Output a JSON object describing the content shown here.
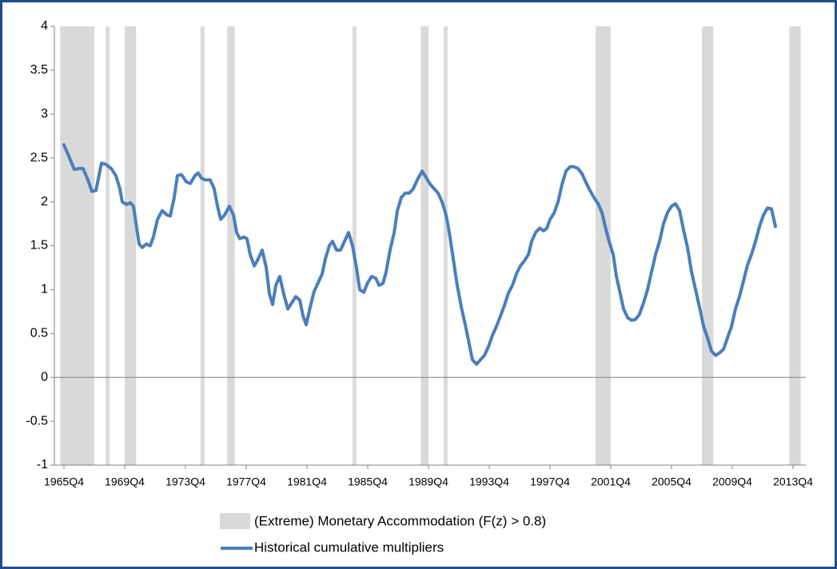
{
  "chart_data": {
    "type": "line",
    "x": [
      1965.75,
      1966.12,
      1966.43,
      1966.8,
      1967.01,
      1967.33,
      1967.59,
      1967.86,
      1968.22,
      1968.49,
      1968.86,
      1969.17,
      1969.43,
      1969.59,
      1969.86,
      1970.12,
      1970.33,
      1970.54,
      1970.7,
      1970.91,
      1971.17,
      1971.43,
      1971.64,
      1971.91,
      1972.22,
      1972.54,
      1972.75,
      1973.01,
      1973.22,
      1973.49,
      1973.8,
      1974.07,
      1974.38,
      1974.59,
      1974.8,
      1975.07,
      1975.38,
      1975.64,
      1975.86,
      1976.07,
      1976.33,
      1976.64,
      1976.91,
      1977.12,
      1977.33,
      1977.59,
      1977.8,
      1978.01,
      1978.28,
      1978.54,
      1978.8,
      1979.07,
      1979.28,
      1979.49,
      1979.7,
      1979.96,
      1980.22,
      1980.49,
      1980.75,
      1981.01,
      1981.28,
      1981.49,
      1981.7,
      1981.96,
      1982.22,
      1982.49,
      1982.75,
      1982.96,
      1983.22,
      1983.43,
      1983.7,
      1983.96,
      1984.22,
      1984.49,
      1984.75,
      1985.01,
      1985.22,
      1985.49,
      1985.75,
      1986.01,
      1986.28,
      1986.49,
      1986.75,
      1986.96,
      1987.22,
      1987.49,
      1987.7,
      1987.96,
      1988.22,
      1988.49,
      1988.75,
      1989.01,
      1989.33,
      1989.59,
      1989.86,
      1990.12,
      1990.38,
      1990.64,
      1990.91,
      1991.12,
      1991.38,
      1991.64,
      1991.91,
      1992.17,
      1992.43,
      1992.64,
      1992.91,
      1993.17,
      1993.43,
      1993.7,
      1993.96,
      1994.22,
      1994.49,
      1994.75,
      1995.01,
      1995.28,
      1995.54,
      1995.8,
      1996.07,
      1996.33,
      1996.54,
      1996.8,
      1997.07,
      1997.33,
      1997.54,
      1997.75,
      1998.01,
      1998.28,
      1998.54,
      1998.8,
      1999.07,
      1999.33,
      1999.59,
      1999.86,
      2000.12,
      2000.38,
      2000.64,
      2000.91,
      2001.17,
      2001.38,
      2001.64,
      2001.91,
      2002.12,
      2002.38,
      2002.59,
      2002.86,
      2003.12,
      2003.38,
      2003.64,
      2003.91,
      2004.17,
      2004.43,
      2004.7,
      2004.96,
      2005.22,
      2005.49,
      2005.75,
      2006.01,
      2006.28,
      2006.54,
      2006.8,
      2007.07,
      2007.33,
      2007.59,
      2007.86,
      2008.12,
      2008.38,
      2008.65,
      2008.91,
      2009.17,
      2009.43,
      2009.7,
      2009.96,
      2010.22,
      2010.49,
      2010.75,
      2011.01,
      2011.28,
      2011.54,
      2011.8,
      2012.07,
      2012.33,
      2012.59
    ],
    "series": [
      {
        "name": "Historical cumulative multipliers",
        "color": "#4a7ebb",
        "values": [
          2.65,
          2.5,
          2.37,
          2.38,
          2.38,
          2.25,
          2.12,
          2.13,
          2.44,
          2.43,
          2.38,
          2.3,
          2.15,
          2.0,
          1.97,
          1.99,
          1.95,
          1.7,
          1.52,
          1.48,
          1.52,
          1.5,
          1.6,
          1.8,
          1.9,
          1.85,
          1.84,
          2.05,
          2.3,
          2.31,
          2.23,
          2.21,
          2.3,
          2.33,
          2.27,
          2.25,
          2.25,
          2.15,
          1.95,
          1.8,
          1.85,
          1.95,
          1.85,
          1.65,
          1.58,
          1.6,
          1.58,
          1.4,
          1.27,
          1.35,
          1.45,
          1.25,
          0.95,
          0.83,
          1.05,
          1.15,
          0.95,
          0.78,
          0.85,
          0.92,
          0.88,
          0.7,
          0.6,
          0.8,
          0.98,
          1.08,
          1.18,
          1.35,
          1.5,
          1.55,
          1.45,
          1.45,
          1.55,
          1.65,
          1.5,
          1.25,
          1.0,
          0.97,
          1.08,
          1.15,
          1.13,
          1.05,
          1.07,
          1.2,
          1.45,
          1.65,
          1.9,
          2.05,
          2.1,
          2.1,
          2.15,
          2.25,
          2.35,
          2.28,
          2.2,
          2.15,
          2.1,
          2.0,
          1.85,
          1.65,
          1.35,
          1.05,
          0.8,
          0.6,
          0.38,
          0.2,
          0.15,
          0.2,
          0.25,
          0.35,
          0.48,
          0.58,
          0.7,
          0.82,
          0.96,
          1.05,
          1.18,
          1.27,
          1.33,
          1.4,
          1.55,
          1.65,
          1.7,
          1.67,
          1.7,
          1.8,
          1.87,
          2.0,
          2.2,
          2.35,
          2.4,
          2.4,
          2.38,
          2.32,
          2.22,
          2.13,
          2.05,
          1.98,
          1.88,
          1.72,
          1.55,
          1.4,
          1.15,
          0.95,
          0.78,
          0.68,
          0.65,
          0.66,
          0.72,
          0.85,
          1.0,
          1.2,
          1.4,
          1.55,
          1.75,
          1.88,
          1.95,
          1.98,
          1.9,
          1.68,
          1.48,
          1.2,
          1.0,
          0.8,
          0.58,
          0.45,
          0.3,
          0.25,
          0.28,
          0.32,
          0.45,
          0.58,
          0.78,
          0.92,
          1.1,
          1.28,
          1.4,
          1.55,
          1.72,
          1.85,
          1.93,
          1.92,
          1.72
        ]
      }
    ],
    "bands": {
      "name": "(Extreme) Monetary Accommodation (F(z) > 0.8)",
      "color": "#d9d9d9",
      "periods": [
        [
          1965.5,
          1967.75
        ],
        [
          1968.5,
          1968.75
        ],
        [
          1969.75,
          1970.5
        ],
        [
          1974.75,
          1975
        ],
        [
          1976.5,
          1977
        ],
        [
          1984.75,
          1985
        ],
        [
          1989.25,
          1989.75
        ],
        [
          1990.75,
          1991
        ],
        [
          2000.75,
          2001.75
        ],
        [
          2007.75,
          2008.5
        ],
        [
          2013.5,
          2014.25
        ]
      ]
    },
    "xlim": [
      1965.12,
      2014.59
    ],
    "xticks": [
      {
        "value": 1965.75,
        "label": "1965Q4"
      },
      {
        "value": 1969.75,
        "label": "1969Q4"
      },
      {
        "value": 1973.75,
        "label": "1973Q4"
      },
      {
        "value": 1977.75,
        "label": "1977Q4"
      },
      {
        "value": 1981.75,
        "label": "1981Q4"
      },
      {
        "value": 1985.75,
        "label": "1985Q4"
      },
      {
        "value": 1989.75,
        "label": "1989Q4"
      },
      {
        "value": 1993.75,
        "label": "1993Q4"
      },
      {
        "value": 1997.75,
        "label": "1997Q4"
      },
      {
        "value": 2001.75,
        "label": "2001Q4"
      },
      {
        "value": 2005.75,
        "label": "2005Q4"
      },
      {
        "value": 2009.75,
        "label": "2009Q4"
      },
      {
        "value": 2013.75,
        "label": "2013Q4"
      }
    ],
    "ylim": [
      -1,
      4
    ],
    "yticks": [
      4,
      3.5,
      3,
      2.5,
      2,
      1.5,
      1,
      0.5,
      0,
      -0.5,
      -1
    ],
    "grid": false
  }
}
